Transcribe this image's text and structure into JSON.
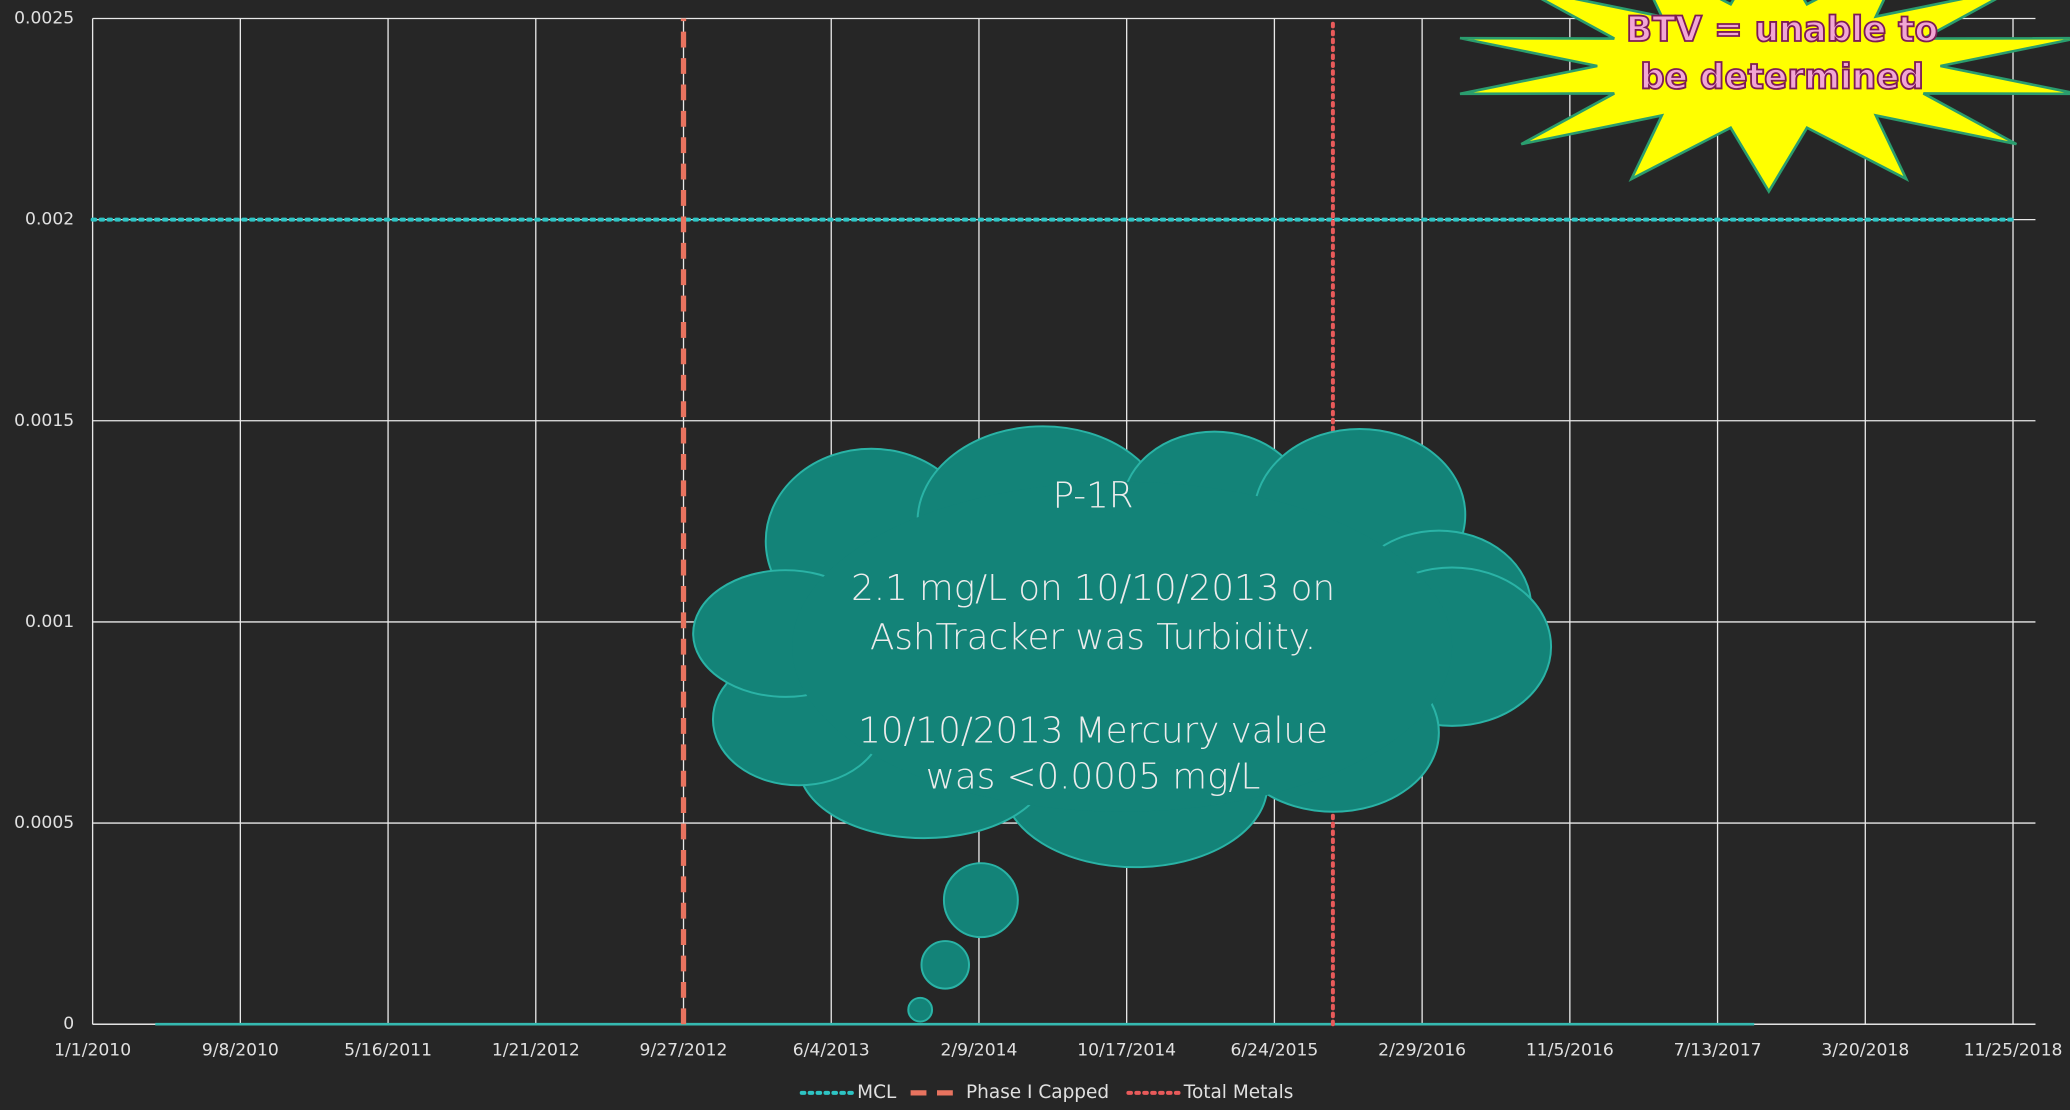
{
  "chart_data": {
    "type": "line",
    "xlim": [
      "1/1/2010",
      "11/25/2018"
    ],
    "xticks": [
      "1/1/2010",
      "9/8/2010",
      "5/16/2011",
      "1/21/2012",
      "9/27/2012",
      "6/4/2013",
      "2/9/2014",
      "10/17/2014",
      "6/24/2015",
      "2/29/2016",
      "11/5/2016",
      "7/13/2017",
      "3/20/2018",
      "11/25/2018"
    ],
    "ylim": [
      0,
      0.0025
    ],
    "yticks": [
      0,
      0.0005,
      0.001,
      0.0015,
      0.002,
      0.0025
    ],
    "grid": true,
    "legend": "bottom",
    "series": [
      {
        "x": [
          "4/17/2010",
          "9/13/2017"
        ],
        "values": [
          0,
          0
        ],
        "color": "#35b9b0",
        "style": "solid"
      },
      {
        "name": "MCL",
        "x": [
          "1/1/2010",
          "11/25/2018"
        ],
        "values": [
          0.002,
          0.002
        ],
        "color": "#2ec4c4",
        "style": "dotted"
      },
      {
        "name": "Phase I Capped",
        "x": [
          "9/27/2012",
          "9/27/2012"
        ],
        "values": [
          0,
          0.0025
        ],
        "color": "#e8735f",
        "style": "dashed"
      },
      {
        "name": "Total Metals",
        "x": [
          "10/1/2015",
          "10/1/2015"
        ],
        "values": [
          0,
          0.0025
        ],
        "color": "#e85a5a",
        "style": "dotted"
      }
    ],
    "annotations": {
      "cloud": [
        "P-1R",
        "2.1 mg/L on 10/10/2013 on",
        "AshTracker was Turbidity.",
        "10/10/2013 Mercury value",
        "was <0.0005 mg/L"
      ],
      "starburst": [
        "BTV =  unable to",
        "be determined"
      ]
    }
  }
}
